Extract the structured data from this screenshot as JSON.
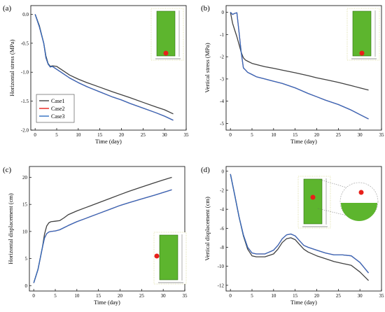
{
  "chart_data": [
    {
      "type": "line",
      "panel_label": "(a)",
      "xlabel": "Time (day)",
      "ylabel": "Horizontal stress (MPa)",
      "xlim": [
        -1,
        35
      ],
      "ylim": [
        -2.0,
        0.15
      ],
      "xticks": [
        0,
        5,
        10,
        15,
        20,
        25,
        30,
        35
      ],
      "yticks": [
        0.0,
        -0.5,
        -1.0,
        -1.5,
        -2.0
      ],
      "ytick_labels": [
        "0.0",
        "-0.5",
        "-1.0",
        "-1.5",
        "-2.0"
      ],
      "legend": {
        "position": "left-middle",
        "entries": [
          "Case1",
          "Case2",
          "Case3"
        ]
      },
      "series": [
        {
          "name": "Case1",
          "color": "#404040",
          "x": [
            0,
            1,
            2,
            2.5,
            3,
            3.5,
            4,
            5,
            6,
            8,
            10,
            12,
            15,
            18,
            20,
            22,
            25,
            28,
            30,
            32
          ],
          "y": [
            0.0,
            -0.2,
            -0.5,
            -0.72,
            -0.85,
            -0.9,
            -0.89,
            -0.9,
            -0.95,
            -1.05,
            -1.12,
            -1.18,
            -1.26,
            -1.34,
            -1.39,
            -1.44,
            -1.52,
            -1.6,
            -1.65,
            -1.72
          ]
        },
        {
          "name": "Case2",
          "color": "#e8201a",
          "x": [
            0,
            1,
            2,
            2.5,
            3,
            3.5,
            4,
            5,
            6,
            8,
            10,
            12,
            15,
            18,
            20,
            22,
            25,
            28,
            30,
            32
          ],
          "y": [
            0.0,
            -0.22,
            -0.5,
            -0.75,
            -0.86,
            -0.91,
            -0.9,
            -0.95,
            -1.0,
            -1.1,
            -1.18,
            -1.25,
            -1.34,
            -1.43,
            -1.48,
            -1.54,
            -1.62,
            -1.7,
            -1.76,
            -1.83
          ]
        },
        {
          "name": "Case3",
          "color": "#2f6dc2",
          "x": [
            0,
            1,
            2,
            2.5,
            3,
            3.5,
            4,
            5,
            6,
            8,
            10,
            12,
            15,
            18,
            20,
            22,
            25,
            28,
            30,
            32
          ],
          "y": [
            0.0,
            -0.22,
            -0.5,
            -0.75,
            -0.86,
            -0.91,
            -0.9,
            -0.95,
            -1.0,
            -1.1,
            -1.18,
            -1.25,
            -1.34,
            -1.43,
            -1.48,
            -1.54,
            -1.62,
            -1.7,
            -1.76,
            -1.83
          ]
        }
      ]
    },
    {
      "type": "line",
      "panel_label": "(b)",
      "xlabel": "Time (day)",
      "ylabel": "Vertical stress (MPa)",
      "xlim": [
        -1,
        35
      ],
      "ylim": [
        -5.3,
        0.3
      ],
      "xticks": [
        0,
        5,
        10,
        15,
        20,
        25,
        30,
        35
      ],
      "yticks": [
        0,
        -1,
        -2,
        -3,
        -4,
        -5
      ],
      "ytick_labels": [
        "0",
        "-1",
        "-2",
        "-3",
        "-4",
        "-5"
      ],
      "series": [
        {
          "name": "Case1",
          "color": "#404040",
          "x": [
            0,
            0.5,
            1,
            1.5,
            2,
            2.5,
            3,
            3.5,
            4,
            5,
            6,
            8,
            10,
            12,
            15,
            18,
            20,
            22,
            25,
            28,
            30,
            32
          ],
          "y": [
            0.0,
            -0.5,
            -0.8,
            -1.1,
            -1.45,
            -1.8,
            -2.05,
            -2.15,
            -2.2,
            -2.3,
            -2.35,
            -2.45,
            -2.52,
            -2.6,
            -2.72,
            -2.85,
            -2.95,
            -3.03,
            -3.15,
            -3.3,
            -3.4,
            -3.5
          ]
        },
        {
          "name": "Case2",
          "color": "#e8201a",
          "x": [
            0,
            0.5,
            1,
            1.5,
            2,
            2.5,
            3,
            3.5,
            4,
            5,
            6,
            8,
            10,
            12,
            15,
            18,
            20,
            22,
            25,
            28,
            30,
            32
          ],
          "y": [
            0.0,
            -0.1,
            -0.05,
            -0.02,
            -0.9,
            -1.8,
            -2.5,
            -2.6,
            -2.7,
            -2.8,
            -2.9,
            -3.0,
            -3.1,
            -3.2,
            -3.4,
            -3.65,
            -3.8,
            -3.95,
            -4.15,
            -4.4,
            -4.6,
            -4.8
          ]
        },
        {
          "name": "Case3",
          "color": "#2f6dc2",
          "x": [
            0,
            0.5,
            1,
            1.5,
            2,
            2.5,
            3,
            3.5,
            4,
            5,
            6,
            8,
            10,
            12,
            15,
            18,
            20,
            22,
            25,
            28,
            30,
            32
          ],
          "y": [
            0.0,
            -0.1,
            -0.05,
            -0.02,
            -0.9,
            -1.8,
            -2.5,
            -2.6,
            -2.7,
            -2.8,
            -2.9,
            -3.0,
            -3.1,
            -3.2,
            -3.4,
            -3.65,
            -3.8,
            -3.95,
            -4.15,
            -4.4,
            -4.6,
            -4.8
          ]
        }
      ]
    },
    {
      "type": "line",
      "panel_label": "(c)",
      "xlabel": "Time (day)",
      "ylabel": "Horizontal displacement (cm)",
      "xlim": [
        -1,
        35
      ],
      "ylim": [
        -1,
        22
      ],
      "xticks": [
        0,
        5,
        10,
        15,
        20,
        25,
        30,
        35
      ],
      "yticks": [
        0,
        5,
        10,
        15,
        20
      ],
      "ytick_labels": [
        "0",
        "5",
        "10",
        "15",
        "20"
      ],
      "series": [
        {
          "name": "Case1",
          "color": "#404040",
          "x": [
            0,
            1,
            2,
            2.5,
            3,
            3.5,
            4,
            5,
            6,
            7,
            8,
            10,
            12,
            15,
            18,
            20,
            22,
            25,
            28,
            30,
            32
          ],
          "y": [
            0.5,
            3.0,
            7.0,
            9.5,
            11.0,
            11.6,
            11.8,
            11.9,
            12.0,
            12.5,
            13.1,
            13.8,
            14.4,
            15.3,
            16.2,
            16.8,
            17.4,
            18.2,
            19.0,
            19.5,
            20.0
          ]
        },
        {
          "name": "Case2",
          "color": "#e8201a",
          "x": [
            0,
            1,
            2,
            2.5,
            3,
            3.5,
            4,
            5,
            6,
            7,
            8,
            10,
            12,
            15,
            18,
            20,
            22,
            25,
            28,
            30,
            32
          ],
          "y": [
            0.5,
            3.0,
            7.0,
            8.8,
            9.6,
            9.9,
            10.0,
            10.1,
            10.3,
            10.7,
            11.1,
            11.8,
            12.4,
            13.3,
            14.2,
            14.8,
            15.3,
            16.0,
            16.7,
            17.2,
            17.7
          ]
        },
        {
          "name": "Case3",
          "color": "#2f6dc2",
          "x": [
            0,
            1,
            2,
            2.5,
            3,
            3.5,
            4,
            5,
            6,
            7,
            8,
            10,
            12,
            15,
            18,
            20,
            22,
            25,
            28,
            30,
            32
          ],
          "y": [
            0.5,
            3.0,
            7.0,
            8.8,
            9.6,
            9.9,
            10.0,
            10.1,
            10.3,
            10.7,
            11.1,
            11.8,
            12.4,
            13.3,
            14.2,
            14.8,
            15.3,
            16.0,
            16.7,
            17.2,
            17.7
          ]
        }
      ]
    },
    {
      "type": "line",
      "panel_label": "(d)",
      "xlabel": "Time (day)",
      "ylabel": "Vertical displacement (cm)",
      "xlim": [
        -1,
        35
      ],
      "ylim": [
        -12.6,
        0.5
      ],
      "xticks": [
        0,
        5,
        10,
        15,
        20,
        25,
        30,
        35
      ],
      "yticks": [
        0,
        -2,
        -4,
        -6,
        -8,
        -10,
        -12
      ],
      "ytick_labels": [
        "0",
        "-2",
        "-4",
        "-6",
        "-8",
        "-10",
        "-12"
      ],
      "series": [
        {
          "name": "Case1",
          "color": "#404040",
          "x": [
            0,
            1,
            2,
            3,
            4,
            5,
            6,
            8,
            10,
            11,
            12,
            13,
            14,
            15,
            16,
            17,
            18,
            20,
            22,
            24,
            26,
            28,
            30,
            32
          ],
          "y": [
            -0.3,
            -2.5,
            -4.8,
            -6.8,
            -8.2,
            -8.9,
            -9.0,
            -9.0,
            -8.7,
            -8.2,
            -7.5,
            -7.1,
            -7.0,
            -7.2,
            -7.7,
            -8.2,
            -8.5,
            -8.9,
            -9.2,
            -9.5,
            -9.7,
            -9.9,
            -10.6,
            -11.5
          ]
        },
        {
          "name": "Case2",
          "color": "#e8201a",
          "x": [
            0,
            1,
            2,
            3,
            4,
            5,
            6,
            8,
            10,
            11,
            12,
            13,
            14,
            15,
            16,
            17,
            18,
            20,
            22,
            24,
            26,
            28,
            30,
            32
          ],
          "y": [
            -0.3,
            -2.5,
            -4.8,
            -6.7,
            -8.0,
            -8.6,
            -8.7,
            -8.7,
            -8.3,
            -7.8,
            -7.1,
            -6.7,
            -6.6,
            -6.8,
            -7.3,
            -7.8,
            -8.0,
            -8.3,
            -8.6,
            -8.8,
            -8.8,
            -8.9,
            -9.6,
            -10.7
          ]
        },
        {
          "name": "Case3",
          "color": "#2f6dc2",
          "x": [
            0,
            1,
            2,
            3,
            4,
            5,
            6,
            8,
            10,
            11,
            12,
            13,
            14,
            15,
            16,
            17,
            18,
            20,
            22,
            24,
            26,
            28,
            30,
            32
          ],
          "y": [
            -0.3,
            -2.5,
            -4.8,
            -6.7,
            -8.0,
            -8.6,
            -8.7,
            -8.7,
            -8.3,
            -7.8,
            -7.1,
            -6.7,
            -6.6,
            -6.8,
            -7.3,
            -7.8,
            -8.0,
            -8.3,
            -8.6,
            -8.8,
            -8.8,
            -8.9,
            -9.6,
            -10.7
          ]
        }
      ]
    }
  ]
}
